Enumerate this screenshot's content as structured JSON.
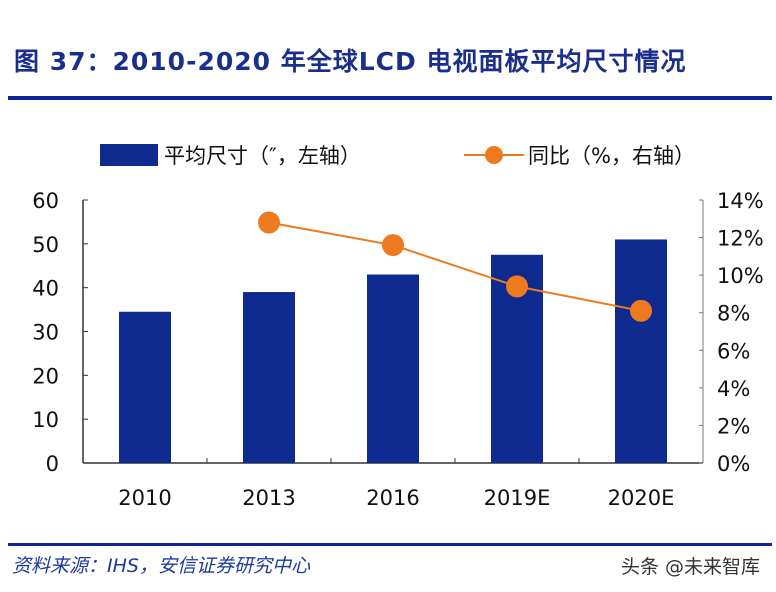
{
  "title": "图 37：2010-2020 年全球LCD 电视面板平均尺寸情况",
  "source": "资料来源：IHS，安信证券研究中心",
  "watermark": "头条 @未来智库",
  "colors": {
    "bar": "#0f2a8f",
    "line": "#ee7a1f",
    "title": "#1a2f8c"
  },
  "chart_data": {
    "type": "bar+line",
    "categories": [
      "2010",
      "2013",
      "2016",
      "2019E",
      "2020E"
    ],
    "series": [
      {
        "name": "平均尺寸（″，左轴）",
        "type": "bar",
        "axis": "left",
        "values": [
          34.5,
          39,
          43,
          47.5,
          51
        ]
      },
      {
        "name": "同比（%，右轴）",
        "type": "line",
        "axis": "right",
        "values": [
          null,
          12.8,
          11.6,
          9.4,
          8.1
        ]
      }
    ],
    "ylim_left": [
      0,
      60
    ],
    "yticks_left": [
      "0",
      "10",
      "20",
      "30",
      "40",
      "50",
      "60"
    ],
    "ylim_right": [
      0,
      14
    ],
    "yticks_right": [
      "0%",
      "2%",
      "4%",
      "6%",
      "8%",
      "10%",
      "12%",
      "14%"
    ],
    "legend_position": "top",
    "grid": false
  }
}
